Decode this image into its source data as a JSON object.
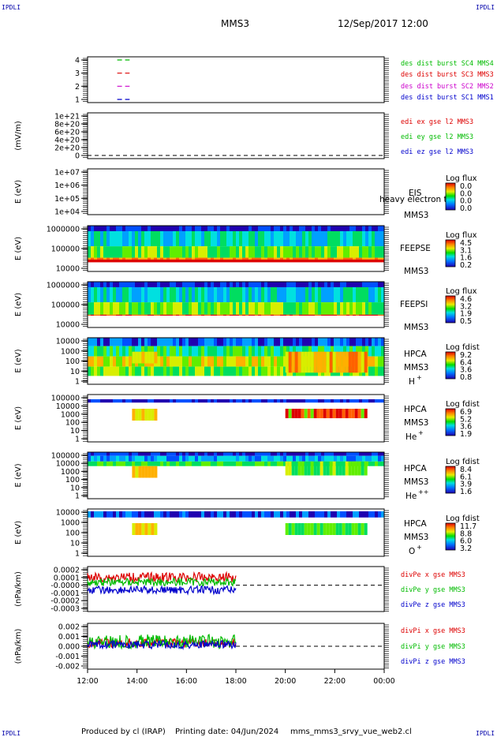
{
  "header": {
    "corner_tag": "IPDLI",
    "mission": "MMS3",
    "datetime": "12/Sep/2017 12:00"
  },
  "footer": {
    "produced_by": "Produced by cl (IRAP)",
    "printing_date": "Printing date: 04/Jun/2024",
    "script_name": "mms_mms3_srvy_vue_web2.cl"
  },
  "chart_data": {
    "type": "multi-panel-time-series",
    "x_ticks": [
      "12:00",
      "14:00",
      "16:00",
      "18:00",
      "20:00",
      "22:00",
      "00:00"
    ],
    "x_range_hours": [
      12,
      24
    ],
    "panels": [
      {
        "id": "burst",
        "type": "line",
        "ylabel": "",
        "yticks": [
          "4",
          "3",
          "2",
          "1"
        ],
        "series": [
          {
            "name": "des dist burst SC1 MMS1",
            "color": "#0000cc",
            "level": 1,
            "segment_hours": [
              13.2,
              13.7
            ]
          },
          {
            "name": "des dist burst SC2 MMS2",
            "color": "#cc00cc",
            "level": 2,
            "segment_hours": [
              13.2,
              13.7
            ]
          },
          {
            "name": "des dist burst SC3 MMS3",
            "color": "#dd0000",
            "level": 3,
            "segment_hours": [
              13.2,
              13.7
            ]
          },
          {
            "name": "des dist burst SC4 MMS4",
            "color": "#00bb00",
            "level": 4,
            "segment_hours": [
              13.2,
              13.7
            ]
          }
        ]
      },
      {
        "id": "edi",
        "type": "line",
        "ylabel": "(mV/m)",
        "yticks": [
          "1e+21",
          "8e+20",
          "6e+20",
          "4e+20",
          "2e+20",
          "0"
        ],
        "series": [
          {
            "name": "edi ex gse l2 MMS3",
            "color": "#dd0000"
          },
          {
            "name": "edi ey gse l2 MMS3",
            "color": "#00bb00"
          },
          {
            "name": "edi ez gse l2 MMS3",
            "color": "#0000cc"
          }
        ]
      },
      {
        "id": "eis",
        "type": "heatmap",
        "ylabel": "E (eV)",
        "yticks": [
          "1e+07",
          "1e+06",
          "1e+05",
          "1e+04"
        ],
        "instrument": [
          "EIS",
          "MMS3"
        ],
        "overlay_text": "heavy electron to",
        "colorbar_title": "Log flux",
        "colorbar_ticks": [
          "0.0",
          "0.0",
          "0.0",
          "0.0"
        ]
      },
      {
        "id": "feepse",
        "type": "heatmap",
        "ylabel": "E (eV)",
        "yticks": [
          "1000000",
          "100000",
          "10000"
        ],
        "instrument": [
          "FEEPSE",
          "MMS3"
        ],
        "colorbar_title": "Log flux",
        "colorbar_ticks": [
          "4.5",
          "3.1",
          "1.6",
          "0.2"
        ]
      },
      {
        "id": "feepsi",
        "type": "heatmap",
        "ylabel": "E (eV)",
        "yticks": [
          "1000000",
          "100000",
          "10000"
        ],
        "instrument": [
          "FEEPSI",
          "MMS3"
        ],
        "colorbar_title": "Log flux",
        "colorbar_ticks": [
          "4.6",
          "3.2",
          "1.9",
          "0.5"
        ]
      },
      {
        "id": "hpca_h",
        "type": "heatmap",
        "ylabel": "E (eV)",
        "yticks": [
          "10000",
          "1000",
          "100",
          "10",
          "1"
        ],
        "instrument": [
          "HPCA",
          "MMS3"
        ],
        "species": "H",
        "species_charge": "+",
        "colorbar_title": "Log fdist",
        "colorbar_ticks": [
          "9.2",
          "6.4",
          "3.6",
          "0.8"
        ]
      },
      {
        "id": "hpca_he",
        "type": "heatmap",
        "ylabel": "E (eV)",
        "yticks": [
          "100000",
          "10000",
          "1000",
          "100",
          "10",
          "1"
        ],
        "instrument": [
          "HPCA",
          "MMS3"
        ],
        "species": "He",
        "species_charge": "+",
        "colorbar_title": "Log fdist",
        "colorbar_ticks": [
          "6.9",
          "5.2",
          "3.6",
          "1.9"
        ]
      },
      {
        "id": "hpca_hepp",
        "type": "heatmap",
        "ylabel": "E (eV)",
        "yticks": [
          "100000",
          "10000",
          "1000",
          "100",
          "10",
          "1"
        ],
        "instrument": [
          "HPCA",
          "MMS3"
        ],
        "species": "He",
        "species_charge": "++",
        "colorbar_title": "Log fdist",
        "colorbar_ticks": [
          "8.4",
          "6.1",
          "3.9",
          "1.6"
        ]
      },
      {
        "id": "hpca_o",
        "type": "heatmap",
        "ylabel": "E (eV)",
        "yticks": [
          "10000",
          "1000",
          "100",
          "10",
          "1"
        ],
        "instrument": [
          "HPCA",
          "MMS3"
        ],
        "species": "O",
        "species_charge": "+",
        "colorbar_title": "Log fdist",
        "colorbar_ticks": [
          "11.7",
          "8.8",
          "6.0",
          "3.2"
        ]
      },
      {
        "id": "divpe",
        "type": "line",
        "ylabel": "(nPa/km)",
        "yticks": [
          "0.0002",
          "0.0001",
          "-0.0000",
          "-0.0001",
          "-0.0002",
          "-0.0003"
        ],
        "data_end_hours": 18,
        "series": [
          {
            "name": "divPe x gse MMS3",
            "color": "#dd0000"
          },
          {
            "name": "divPe y gse MMS3",
            "color": "#00bb00"
          },
          {
            "name": "divPe z gse MMS3",
            "color": "#0000cc"
          }
        ]
      },
      {
        "id": "divpi",
        "type": "line",
        "ylabel": "(nPa/km)",
        "yticks": [
          "0.002",
          "0.001",
          "0.000",
          "-0.001",
          "-0.002"
        ],
        "data_end_hours": 18,
        "series": [
          {
            "name": "divPi x gse MMS3",
            "color": "#dd0000"
          },
          {
            "name": "divPi y gse MMS3",
            "color": "#00bb00"
          },
          {
            "name": "divPi z gse MMS3",
            "color": "#0000cc"
          }
        ]
      }
    ]
  }
}
